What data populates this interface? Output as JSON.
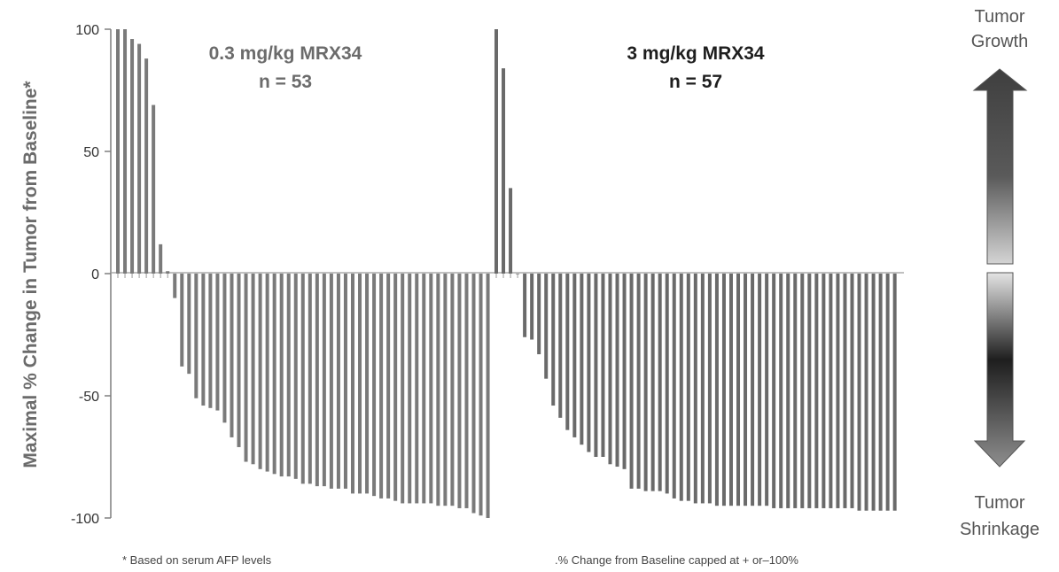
{
  "chart_data": {
    "type": "bar",
    "title": "",
    "xlabel": "",
    "ylabel": "Maximal % Change in Tumor from Baseline*",
    "ylim": [
      -100,
      100
    ],
    "yticks": [
      100,
      50,
      0,
      -50,
      -100
    ],
    "grid": false,
    "legend": "none",
    "series": [
      {
        "name": "0.3 mg/kg MRX34",
        "label": "0.3 mg/kg MRX34",
        "n_label": "n = 53",
        "color": "#7a7a7a",
        "values": [
          100,
          100,
          96,
          94,
          88,
          69,
          12,
          1,
          -10,
          -38,
          -41,
          -51,
          -54,
          -55,
          -56,
          -61,
          -67,
          -71,
          -77,
          -78,
          -80,
          -81,
          -82,
          -83,
          -83,
          -84,
          -86,
          -86,
          -87,
          -87,
          -88,
          -88,
          -88,
          -90,
          -90,
          -90,
          -91,
          -92,
          -92,
          -93,
          -94,
          -94,
          -94,
          -94,
          -94,
          -95,
          -95,
          -95,
          -96,
          -96,
          -98,
          -99,
          -100
        ]
      },
      {
        "name": "3 mg/kg MRX34",
        "label": "3 mg/kg MRX34",
        "n_label": "n = 57",
        "color": "#6a6a6a",
        "values": [
          100,
          84,
          35,
          0,
          -26,
          -27,
          -33,
          -43,
          -54,
          -59,
          -64,
          -67,
          -70,
          -73,
          -75,
          -75,
          -78,
          -79,
          -80,
          -88,
          -88,
          -89,
          -89,
          -89,
          -90,
          -92,
          -93,
          -93,
          -94,
          -94,
          -94,
          -95,
          -95,
          -95,
          -95,
          -95,
          -95,
          -95,
          -95,
          -96,
          -96,
          -96,
          -96,
          -96,
          -96,
          -96,
          -96,
          -96,
          -96,
          -96,
          -96,
          -97,
          -97,
          -97,
          -97,
          -97,
          -97
        ]
      }
    ]
  },
  "arrow_labels": {
    "top_line1": "Tumor",
    "top_line2": "Growth",
    "bottom_line1": "Tumor",
    "bottom_line2": "Shrinkage"
  },
  "footnotes": {
    "left": "* Based on serum AFP levels",
    "right": ".% Change from Baseline capped at + or–100%"
  },
  "colors": {
    "bar": "#7a7a7a",
    "axis": "#7f7f7f",
    "title_group1": "#6b6b6b",
    "title_group2": "#1e1e1e"
  }
}
